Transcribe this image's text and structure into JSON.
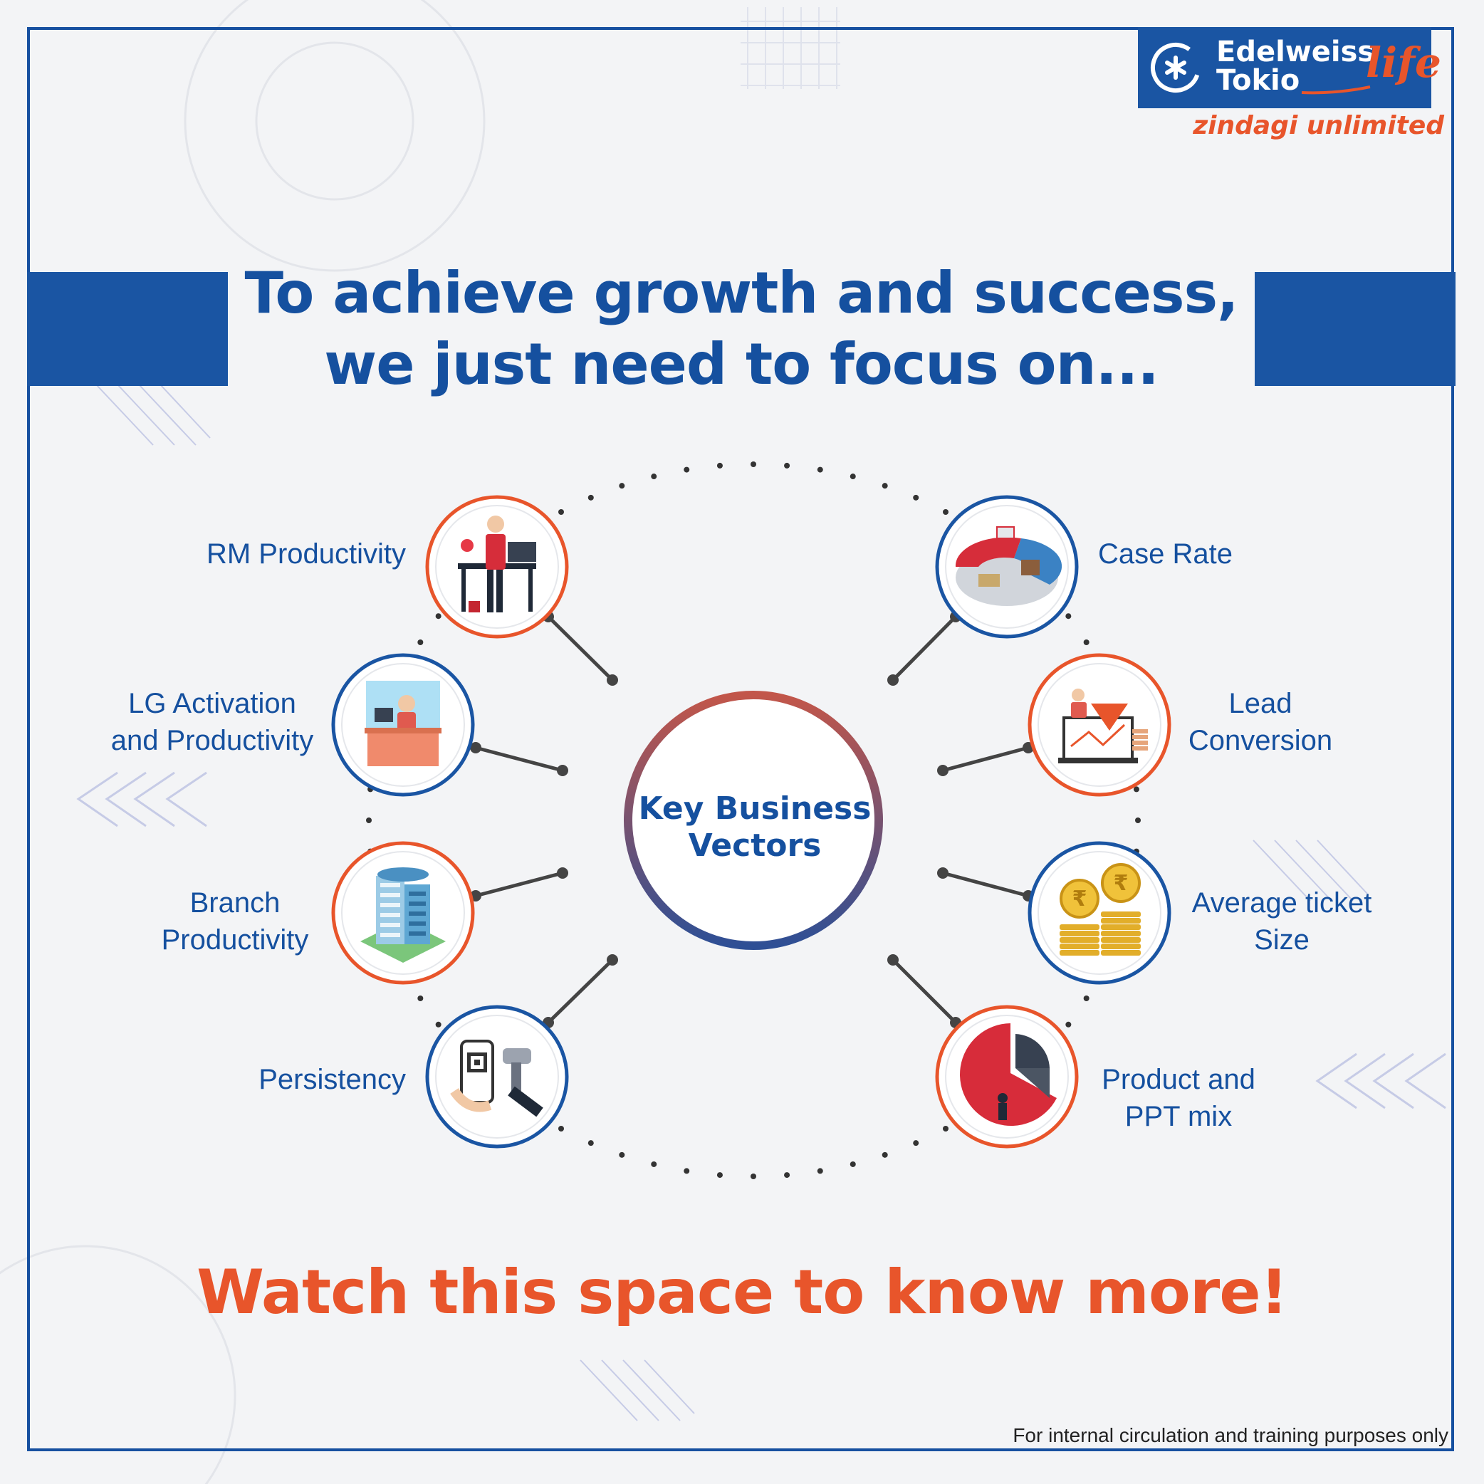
{
  "brand": {
    "name_line1": "Edelweiss",
    "name_line2": "Tokio",
    "name_life": "life",
    "tagline": "zindagi unlimited",
    "color_blue": "#1a55a3",
    "color_orange": "#e8552b"
  },
  "headline": {
    "line1": "To achieve growth and success,",
    "line2": "we just need to focus on..."
  },
  "center": {
    "line1": "Key Business",
    "line2": "Vectors"
  },
  "vectors": [
    {
      "id": "rm",
      "line1": "RM Productivity",
      "line2": "",
      "icon": "businessman-desk-icon",
      "ring": "orange"
    },
    {
      "id": "lg",
      "line1": "LG Activation",
      "line2": "and Productivity",
      "icon": "service-counter-icon",
      "ring": "blue"
    },
    {
      "id": "branch",
      "line1": "Branch",
      "line2": "Productivity",
      "icon": "office-building-icon",
      "ring": "orange"
    },
    {
      "id": "persistency",
      "line1": "Persistency",
      "line2": "",
      "icon": "qr-payment-icon",
      "ring": "blue"
    },
    {
      "id": "case",
      "line1": "Case Rate",
      "line2": "",
      "icon": "pie-segments-icon",
      "ring": "blue"
    },
    {
      "id": "lead",
      "line1": "Lead",
      "line2": "Conversion",
      "icon": "funnel-laptop-icon",
      "ring": "orange"
    },
    {
      "id": "ticket",
      "line1": "Average ticket",
      "line2": "Size",
      "icon": "rupee-coins-icon",
      "ring": "blue"
    },
    {
      "id": "product",
      "line1": "Product and",
      "line2": "PPT mix",
      "icon": "pie-push-icon",
      "ring": "orange"
    }
  ],
  "cta": "Watch this space to know more!",
  "footnote": "For internal circulation and training purposes only"
}
